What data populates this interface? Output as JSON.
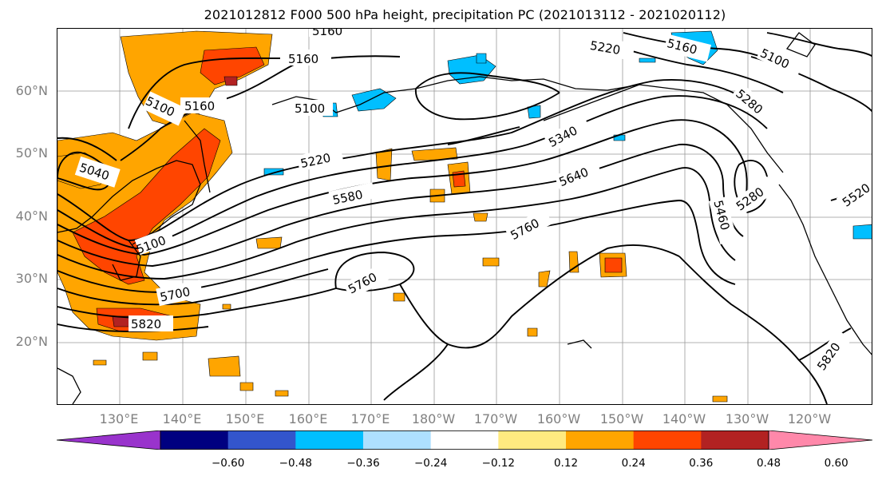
{
  "title": "2021012812 F000 500 hPa height, precipitation PC (2021013112 - 2021020112)",
  "lat_labels": [
    "60°N",
    "50°N",
    "40°N",
    "30°N",
    "20°N"
  ],
  "lon_labels": [
    "130°E",
    "140°E",
    "150°E",
    "160°E",
    "170°E",
    "180°W",
    "170°W",
    "160°W",
    "150°W",
    "140°W",
    "130°W",
    "120°W"
  ],
  "contour_labels": [
    "5160",
    "5100",
    "5160",
    "5040",
    "5220",
    "5580",
    "5100",
    "5220",
    "5160",
    "5100",
    "5280",
    "5340",
    "5640",
    "5760",
    "5760",
    "5700",
    "5820",
    "5460",
    "5280",
    "5520",
    "5820",
    "5160",
    "5100"
  ],
  "colorbar": {
    "colors": [
      "#9933cc",
      "#000080",
      "#3355cc",
      "#00bfff",
      "#aee0ff",
      "#ffffff",
      "#ffea80",
      "#ffa500",
      "#ff4500",
      "#b22222",
      "#ff88aa"
    ],
    "ticks": [
      "−0.60",
      "−0.48",
      "−0.36",
      "−0.24",
      "−0.12",
      "0.12",
      "0.24",
      "0.36",
      "0.48",
      "0.60"
    ]
  }
}
